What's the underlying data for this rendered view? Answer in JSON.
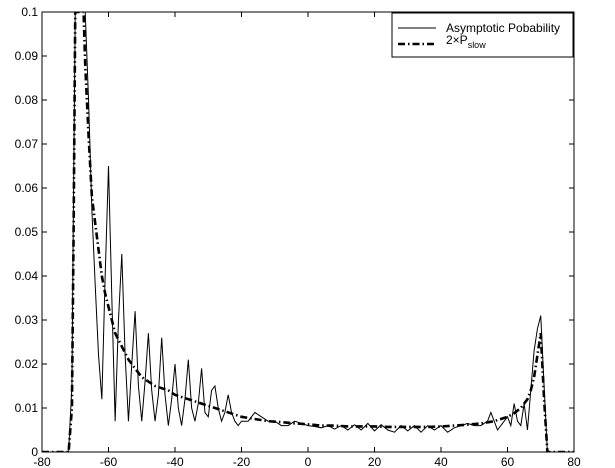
{
  "chart_data": {
    "type": "line",
    "title": "",
    "xlabel": "",
    "ylabel": "",
    "xlim": [
      -80,
      80
    ],
    "ylim": [
      0,
      0.1
    ],
    "grid": false,
    "legend_position": "top-right",
    "x_ticks": [
      "-80",
      "-60",
      "-40",
      "-20",
      "0",
      "20",
      "40",
      "60",
      "80"
    ],
    "y_ticks": [
      "0",
      "0.01",
      "0.02",
      "0.03",
      "0.04",
      "0.05",
      "0.06",
      "0.07",
      "0.08",
      "0.09",
      "0.1"
    ],
    "legend": {
      "entry1": "Asymptotic Pobability",
      "entry2_prefix": "2×P",
      "entry2_sub": "slow"
    },
    "series": [
      {
        "name": "Asymptotic Pobability",
        "style": "solid-thin",
        "color": "#000000",
        "x": [
          -80,
          -72,
          -71,
          -70.5,
          -70,
          -69,
          -68,
          -67.5,
          -67,
          -66,
          -65,
          -64,
          -63,
          -62,
          -61,
          -60,
          -59,
          -58,
          -57,
          -56,
          -55,
          -54,
          -53,
          -52,
          -51,
          -50,
          -49,
          -48,
          -47,
          -46,
          -45,
          -44,
          -43,
          -42,
          -41,
          -40,
          -39,
          -38,
          -37,
          -36,
          -35,
          -34,
          -33,
          -32,
          -31,
          -30,
          -29,
          -28,
          -27,
          -26,
          -25,
          -24,
          -23,
          -22,
          -21,
          -20,
          -18,
          -16,
          -14,
          -12,
          -10,
          -8,
          -6,
          -4,
          -2,
          0,
          2,
          4,
          6,
          8,
          10,
          12,
          14,
          16,
          18,
          20,
          22,
          24,
          26,
          28,
          30,
          32,
          34,
          36,
          38,
          40,
          42,
          44,
          46,
          48,
          50,
          52,
          54,
          55,
          56,
          57,
          58,
          59,
          60,
          61,
          62,
          63,
          64,
          65,
          66,
          67,
          68,
          69,
          70,
          71,
          72,
          80
        ],
        "y": [
          0,
          0,
          0.015,
          0.06,
          0.1,
          0.1,
          0.1,
          0.1,
          0.1,
          0.08,
          0.055,
          0.038,
          0.022,
          0.012,
          0.04,
          0.065,
          0.035,
          0.007,
          0.03,
          0.045,
          0.022,
          0.007,
          0.02,
          0.032,
          0.015,
          0.007,
          0.016,
          0.027,
          0.014,
          0.007,
          0.013,
          0.026,
          0.013,
          0.006,
          0.012,
          0.02,
          0.01,
          0.006,
          0.012,
          0.021,
          0.01,
          0.007,
          0.011,
          0.019,
          0.009,
          0.008,
          0.014,
          0.015,
          0.01,
          0.007,
          0.009,
          0.013,
          0.009,
          0.007,
          0.006,
          0.007,
          0.007,
          0.009,
          0.008,
          0.007,
          0.007,
          0.006,
          0.006,
          0.007,
          0.0065,
          0.006,
          0.0058,
          0.0055,
          0.006,
          0.0052,
          0.006,
          0.005,
          0.0062,
          0.005,
          0.0065,
          0.0048,
          0.0062,
          0.005,
          0.0045,
          0.006,
          0.0048,
          0.006,
          0.0045,
          0.006,
          0.005,
          0.006,
          0.0045,
          0.0055,
          0.006,
          0.0065,
          0.006,
          0.006,
          0.007,
          0.009,
          0.007,
          0.005,
          0.006,
          0.007,
          0.008,
          0.006,
          0.011,
          0.007,
          0.006,
          0.011,
          0.005,
          0.014,
          0.023,
          0.028,
          0.031,
          0.015,
          0,
          0
        ]
      },
      {
        "name": "2×Pslow",
        "style": "dash-dot-thick",
        "color": "#000000",
        "x": [
          -80,
          -72,
          -71,
          -70.5,
          -70,
          -69,
          -68,
          -67.5,
          -67,
          -66,
          -65,
          -64,
          -63,
          -62,
          -61,
          -60,
          -58,
          -56,
          -54,
          -52,
          -50,
          -48,
          -46,
          -44,
          -42,
          -40,
          -38,
          -36,
          -34,
          -32,
          -30,
          -28,
          -26,
          -24,
          -22,
          -20,
          -16,
          -12,
          -8,
          -4,
          0,
          4,
          8,
          12,
          16,
          20,
          24,
          28,
          32,
          36,
          40,
          44,
          48,
          52,
          56,
          58,
          60,
          62,
          64,
          66,
          67,
          68,
          69,
          70,
          71,
          72,
          80
        ],
        "y": [
          0,
          0,
          0.01,
          0.05,
          0.1,
          0.1,
          0.1,
          0.1,
          0.088,
          0.072,
          0.058,
          0.052,
          0.046,
          0.04,
          0.036,
          0.033,
          0.027,
          0.024,
          0.021,
          0.019,
          0.017,
          0.016,
          0.015,
          0.0145,
          0.014,
          0.013,
          0.0125,
          0.012,
          0.0115,
          0.011,
          0.0105,
          0.01,
          0.0095,
          0.009,
          0.0085,
          0.008,
          0.0075,
          0.007,
          0.0068,
          0.0065,
          0.0063,
          0.006,
          0.006,
          0.0058,
          0.0058,
          0.0058,
          0.0057,
          0.0057,
          0.0057,
          0.0057,
          0.0058,
          0.006,
          0.0062,
          0.0065,
          0.007,
          0.0075,
          0.008,
          0.0088,
          0.01,
          0.012,
          0.014,
          0.017,
          0.022,
          0.027,
          0.012,
          0,
          0
        ]
      }
    ]
  }
}
